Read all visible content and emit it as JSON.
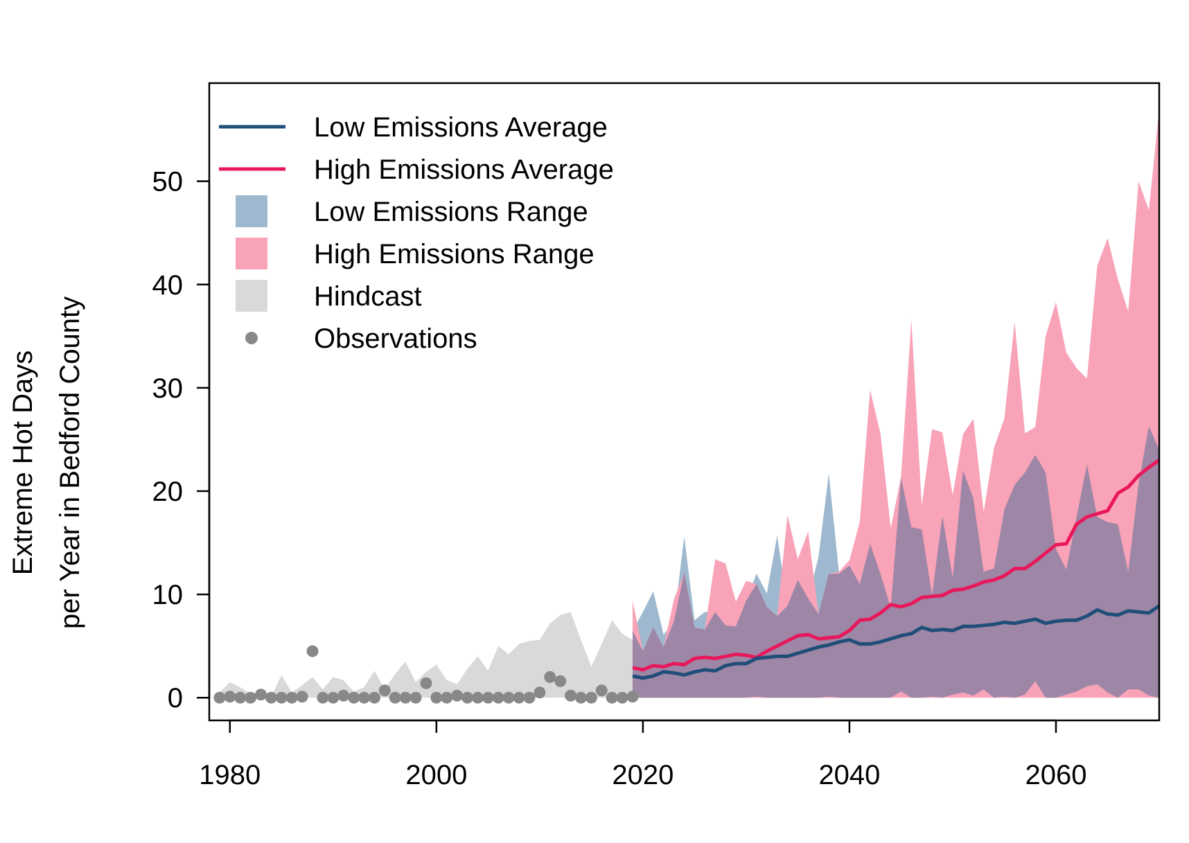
{
  "chart_data": {
    "type": "area",
    "title": "",
    "xlabel": "",
    "ylabel": [
      "Extreme Hot Days",
      "per Year in Bedford County"
    ],
    "xlim": [
      1978,
      2070
    ],
    "ylim": [
      -2.2,
      59.5
    ],
    "x_ticks": [
      1980,
      2000,
      2020,
      2040,
      2060
    ],
    "y_ticks": [
      0,
      10,
      20,
      30,
      40,
      50
    ],
    "grid": false,
    "legend": {
      "position": "top-left",
      "items": [
        {
          "label": "Low Emissions Average",
          "kind": "line",
          "color": "#1f4e79"
        },
        {
          "label": "High Emissions Average",
          "kind": "line",
          "color": "#e8185a"
        },
        {
          "label": "Low Emissions Range",
          "kind": "fill",
          "color": "#9eb9cf"
        },
        {
          "label": "High Emissions Range",
          "kind": "fill",
          "color": "#f9a3b8"
        },
        {
          "label": "Hindcast",
          "kind": "fill",
          "color": "#d9d9d9"
        },
        {
          "label": "Observations",
          "kind": "point",
          "color": "#888888"
        }
      ]
    },
    "colors": {
      "low_avg": "#1f4e79",
      "high_avg": "#e8185a",
      "low_range": "#9eb9cf",
      "high_range": "#f9a3b8",
      "overlap": "#9e86a6",
      "hindcast": "#d9d9d9",
      "observations": "#888888"
    },
    "observations": {
      "x": [
        1979,
        1980,
        1981,
        1982,
        1983,
        1984,
        1985,
        1986,
        1987,
        1988,
        1989,
        1990,
        1991,
        1992,
        1993,
        1994,
        1995,
        1996,
        1997,
        1998,
        1999,
        2000,
        2001,
        2002,
        2003,
        2004,
        2005,
        2006,
        2007,
        2008,
        2009,
        2010,
        2011,
        2012,
        2013,
        2014,
        2015,
        2016,
        2017,
        2018,
        2019
      ],
      "y": [
        0,
        0.1,
        0,
        0,
        0.3,
        0,
        0,
        0,
        0.1,
        4.5,
        0,
        0,
        0.2,
        0,
        0,
        0,
        0.7,
        0,
        0,
        0,
        1.4,
        0,
        0,
        0.2,
        0,
        0,
        0,
        0,
        0,
        0,
        0,
        0.5,
        2.0,
        1.6,
        0.2,
        0,
        0,
        0.7,
        0,
        0,
        0.1
      ]
    },
    "hindcast": {
      "x": [
        1979,
        1980,
        1981,
        1982,
        1983,
        1984,
        1985,
        1986,
        1987,
        1988,
        1989,
        1990,
        1991,
        1992,
        1993,
        1994,
        1995,
        1996,
        1997,
        1998,
        1999,
        2000,
        2001,
        2002,
        2003,
        2004,
        2005,
        2006,
        2007,
        2008,
        2009,
        2010,
        2011,
        2012,
        2013,
        2014,
        2015,
        2016,
        2017,
        2018,
        2019
      ],
      "high": [
        0.5,
        1.5,
        1.0,
        0.4,
        0.5,
        0.1,
        2.2,
        0.5,
        1.2,
        2.0,
        0.8,
        2.0,
        1.7,
        0.6,
        1.0,
        2.6,
        0.8,
        2.3,
        3.5,
        1.5,
        2.5,
        3.2,
        1.7,
        1.3,
        2.8,
        4.0,
        2.6,
        5.0,
        4.2,
        5.2,
        5.5,
        5.6,
        7.2,
        8.0,
        8.3,
        5.6,
        3.0,
        5.2,
        7.5,
        6.2,
        5.6
      ],
      "low": [
        0,
        0,
        0,
        0,
        0,
        0,
        0,
        0,
        0,
        0,
        0,
        0,
        0,
        0,
        0,
        0,
        0,
        0,
        0,
        0,
        0,
        0,
        0,
        0,
        0,
        0,
        0,
        0,
        0,
        0,
        0,
        0,
        0,
        0,
        0,
        0,
        0,
        0,
        0,
        0,
        0
      ]
    },
    "projection_years": [
      2019,
      2020,
      2021,
      2022,
      2023,
      2024,
      2025,
      2026,
      2027,
      2028,
      2029,
      2030,
      2031,
      2032,
      2033,
      2034,
      2035,
      2036,
      2037,
      2038,
      2039,
      2040,
      2041,
      2042,
      2043,
      2044,
      2045,
      2046,
      2047,
      2048,
      2049,
      2050,
      2051,
      2052,
      2053,
      2054,
      2055,
      2056,
      2057,
      2058,
      2059,
      2060,
      2061,
      2062,
      2063,
      2064,
      2065,
      2066,
      2067,
      2068,
      2069,
      2070
    ],
    "series": [
      {
        "name": "Low Emissions Average",
        "values": [
          2.1,
          1.9,
          2.1,
          2.5,
          2.4,
          2.2,
          2.5,
          2.7,
          2.6,
          3.1,
          3.3,
          3.3,
          3.8,
          3.9,
          4.0,
          4.0,
          4.3,
          4.6,
          4.9,
          5.1,
          5.4,
          5.6,
          5.2,
          5.2,
          5.4,
          5.7,
          6.0,
          6.2,
          6.8,
          6.5,
          6.6,
          6.5,
          6.9,
          6.9,
          7.0,
          7.1,
          7.3,
          7.2,
          7.4,
          7.6,
          7.2,
          7.4,
          7.5,
          7.5,
          7.9,
          8.5,
          8.1,
          8.0,
          8.4,
          8.3,
          8.2,
          8.9
        ]
      },
      {
        "name": "High Emissions Average",
        "values": [
          2.9,
          2.7,
          3.1,
          3.0,
          3.3,
          3.2,
          3.8,
          3.9,
          3.8,
          4.0,
          4.2,
          4.1,
          3.9,
          4.5,
          5.0,
          5.5,
          6.0,
          6.1,
          5.7,
          5.8,
          5.9,
          6.5,
          7.5,
          7.6,
          8.2,
          9.0,
          8.8,
          9.1,
          9.7,
          9.8,
          9.9,
          10.4,
          10.5,
          10.8,
          11.2,
          11.4,
          11.8,
          12.5,
          12.5,
          13.2,
          14.0,
          14.8,
          14.9,
          16.8,
          17.5,
          17.8,
          18.1,
          19.8,
          20.4,
          21.5,
          22.3,
          23.0
        ]
      }
    ],
    "ranges": [
      {
        "name": "Low Emissions Range",
        "high": [
          6.5,
          8.3,
          10.3,
          6.1,
          7.4,
          15.6,
          7.5,
          8.3,
          8.3,
          7.0,
          6.9,
          9.4,
          12.0,
          10.1,
          15.7,
          8.9,
          11.4,
          9.6,
          13.6,
          21.7,
          12.0,
          12.8,
          11.0,
          14.9,
          12.0,
          8.7,
          21.3,
          16.5,
          16.3,
          9.9,
          17.6,
          11.6,
          22.0,
          19.3,
          12.2,
          12.5,
          18.2,
          20.6,
          21.8,
          23.5,
          21.8,
          14.4,
          12.4,
          17.5,
          22.6,
          17.5,
          17.0,
          16.8,
          12.2,
          20.7,
          26.3,
          24.0
        ],
        "low": [
          0,
          0,
          0,
          0,
          0,
          0,
          0,
          0,
          0,
          0,
          0,
          0,
          0.1,
          0,
          0,
          0,
          0,
          0,
          0,
          0.1,
          0,
          0,
          0,
          0,
          0,
          0,
          0.6,
          0,
          0,
          0.1,
          0,
          0.3,
          0.5,
          0.2,
          0.8,
          0,
          0.1,
          0,
          0.3,
          1.6,
          0,
          0,
          0.3,
          0.6,
          1.1,
          1.3,
          0.5,
          0,
          0.8,
          0.8,
          0.2,
          0
        ]
      },
      {
        "name": "High Emissions Range",
        "high": [
          9.4,
          4.5,
          6.8,
          4.9,
          9.5,
          12.1,
          6.8,
          6.6,
          13.4,
          13.0,
          9.3,
          11.3,
          11.0,
          8.8,
          7.9,
          17.7,
          13.4,
          16.1,
          8.1,
          12.0,
          12.2,
          13.3,
          17.0,
          29.8,
          25.6,
          16.4,
          21.4,
          36.6,
          18.6,
          26.0,
          25.7,
          19.6,
          25.5,
          27.0,
          18.0,
          24.2,
          27.0,
          36.4,
          25.6,
          26.2,
          35.0,
          38.3,
          33.4,
          31.9,
          30.9,
          41.8,
          44.5,
          40.5,
          37.4,
          50.0,
          47.2,
          57.0
        ],
        "low": [
          0,
          0,
          0,
          0,
          0,
          0,
          0,
          0,
          0,
          0,
          0,
          0,
          0,
          0,
          0,
          0,
          0,
          0,
          0,
          0,
          0,
          0,
          0,
          0,
          0,
          0,
          0,
          0,
          0,
          0,
          0,
          0,
          0,
          0,
          0,
          0,
          0,
          0,
          0,
          0,
          0,
          0,
          0,
          0,
          0,
          0,
          0,
          0,
          0,
          0,
          0,
          0
        ]
      }
    ]
  }
}
